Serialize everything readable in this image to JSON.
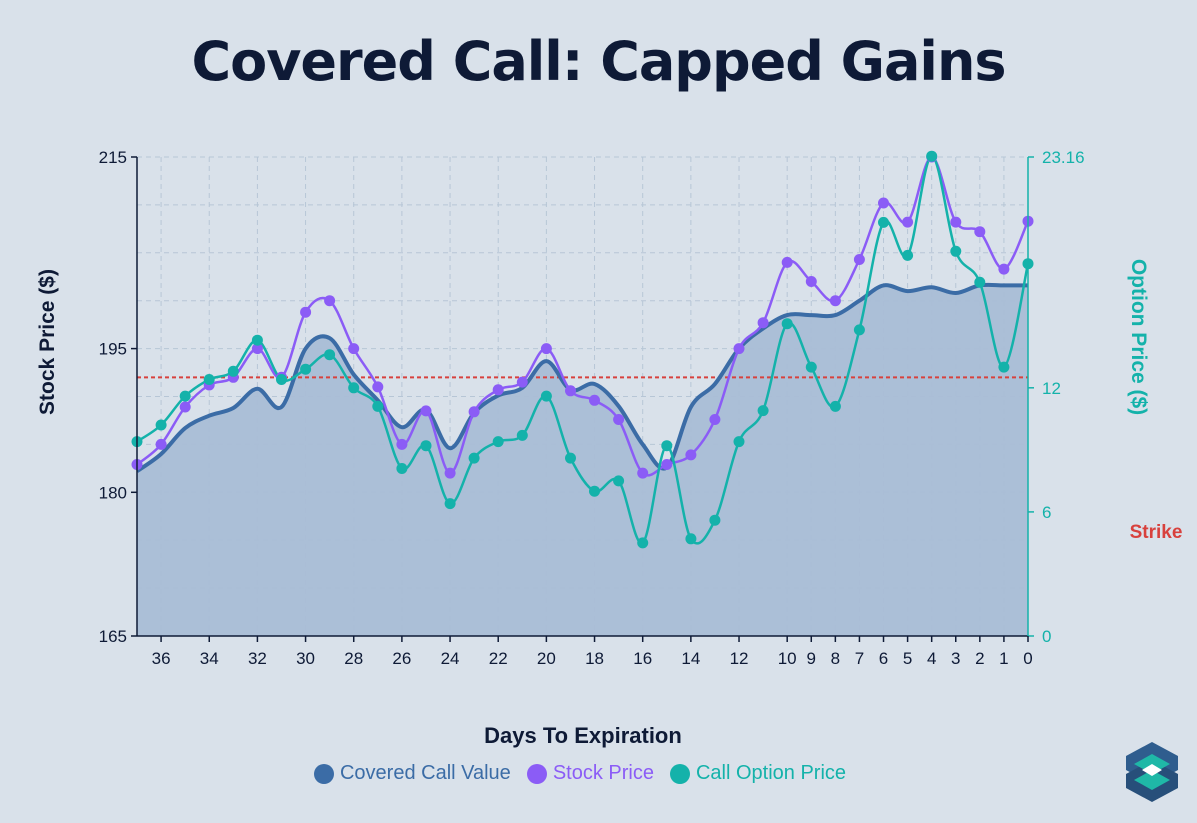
{
  "title": "Covered Call: Capped Gains",
  "colors": {
    "covered_call": "#3b6ca6",
    "stock": "#8b5cf6",
    "option": "#14b2aa",
    "strike": "#d8413d",
    "fill": "#a9bdd6",
    "background": "#d9e1ea",
    "title": "#0e1a36"
  },
  "icons": {
    "brand_logo": "stacked-diamond-logo-icon"
  },
  "chart_data": {
    "type": "line",
    "title": "Covered Call: Capped Gains",
    "xlabel": "Days To Expiration",
    "ylabel": "Stock Price ($)",
    "y2label": "Option Price ($)",
    "ylim": [
      165,
      215
    ],
    "y2lim": [
      0,
      23.16
    ],
    "yticks": [
      "165",
      "180",
      "195",
      "215"
    ],
    "y2ticks": [
      "0",
      "6",
      "12",
      "23.16"
    ],
    "strike": 192,
    "strike_label": "Strike",
    "x": [
      37,
      36,
      35,
      34,
      33,
      32,
      31,
      30,
      29,
      28,
      27,
      26,
      25,
      24,
      23,
      22,
      21,
      20,
      19,
      18,
      17,
      16,
      15,
      14,
      13,
      12,
      11,
      10,
      9,
      8,
      7,
      6,
      5,
      4,
      3,
      2,
      1,
      0
    ],
    "xticks": [
      "36",
      "34",
      "32",
      "30",
      "28",
      "26",
      "24",
      "22",
      "20",
      "18",
      "16",
      "14",
      "12",
      "10",
      "9",
      "8",
      "7",
      "6",
      "5",
      "4",
      "3",
      "2",
      "1",
      "0"
    ],
    "grid": true,
    "legend_position": "bottom",
    "series": [
      {
        "name": "Covered Call Value",
        "axis": "left",
        "marker": false,
        "fill": true,
        "values": [
          182.2,
          184.0,
          186.7,
          188.0,
          188.8,
          190.8,
          188.9,
          195.0,
          196.1,
          192.3,
          189.6,
          186.8,
          188.6,
          184.6,
          188.3,
          190.1,
          190.9,
          193.7,
          190.7,
          191.3,
          189.0,
          185.0,
          182.6,
          188.9,
          191.3,
          195.0,
          197.1,
          198.5,
          198.5,
          198.5,
          200.0,
          201.6,
          201.0,
          201.4,
          200.8,
          201.6,
          201.6,
          201.6
        ]
      },
      {
        "name": "Stock Price",
        "axis": "left",
        "marker": true,
        "values": [
          182.9,
          185.0,
          188.9,
          191.2,
          192.0,
          195.0,
          192.0,
          198.8,
          200.0,
          195.0,
          191.0,
          185.0,
          188.5,
          182.0,
          188.4,
          190.7,
          191.5,
          195.0,
          190.6,
          189.6,
          187.6,
          182.0,
          182.9,
          183.9,
          187.6,
          195.0,
          197.7,
          204.0,
          202.0,
          200.0,
          204.3,
          210.2,
          208.2,
          215.0,
          208.2,
          207.2,
          203.3,
          208.3
        ]
      },
      {
        "name": "Call Option Price",
        "axis": "right",
        "marker": true,
        "values": [
          9.4,
          10.2,
          11.6,
          12.4,
          12.8,
          14.3,
          12.4,
          12.9,
          13.6,
          12.0,
          11.1,
          8.1,
          9.2,
          6.4,
          8.6,
          9.4,
          9.7,
          11.6,
          8.6,
          7.0,
          7.5,
          4.5,
          9.2,
          4.7,
          5.6,
          9.4,
          10.9,
          15.1,
          13.0,
          11.1,
          14.8,
          20.0,
          18.4,
          23.2,
          18.6,
          17.1,
          13.0,
          18.0
        ]
      }
    ]
  }
}
